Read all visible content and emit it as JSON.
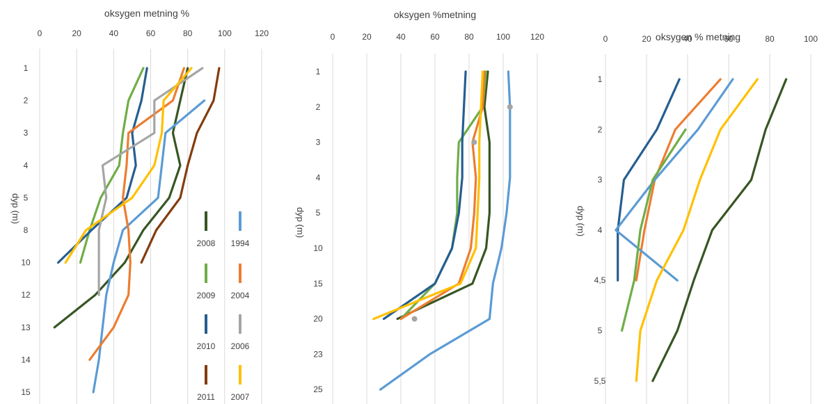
{
  "chart_data": [
    {
      "type": "line",
      "title": "oksygen metning %",
      "xlabel": "oksygen metning %",
      "ylabel": "dyp (m)",
      "xlim": [
        0,
        120
      ],
      "x_ticks": [
        "0",
        "20",
        "40",
        "60",
        "80",
        "100",
        "120"
      ],
      "depth_categories": [
        "1",
        "2",
        "3",
        "4",
        "5",
        "8",
        "10",
        "12",
        "13",
        "14",
        "15"
      ],
      "legend_position": "right",
      "grid": true,
      "series": [
        {
          "name": "2008",
          "color": "#375623",
          "values": [
            80,
            76,
            72,
            76,
            70,
            56,
            46,
            30,
            8,
            null,
            null
          ]
        },
        {
          "name": "2009",
          "color": "#70ad47",
          "values": [
            56,
            48,
            45,
            43,
            33,
            27,
            22,
            null,
            null,
            null,
            null
          ]
        },
        {
          "name": "2010",
          "color": "#255e91",
          "values": [
            58,
            55,
            50,
            52,
            47,
            28,
            10,
            null,
            null,
            null,
            null
          ]
        },
        {
          "name": "2011",
          "color": "#843c0c",
          "values": [
            97,
            94,
            85,
            80,
            76,
            63,
            55,
            null,
            null,
            null,
            null
          ]
        },
        {
          "name": "1994",
          "color": "#5b9bd5",
          "values": [
            null,
            89,
            68,
            66,
            64,
            45,
            40,
            36,
            34,
            32,
            29
          ]
        },
        {
          "name": "2004",
          "color": "#ed7d31",
          "values": [
            78,
            72,
            48,
            47,
            45,
            48,
            49,
            48,
            40,
            27,
            null
          ]
        },
        {
          "name": "2006",
          "color": "#a5a5a5",
          "values": [
            88,
            62,
            62,
            34,
            36,
            32,
            32,
            32,
            null,
            null,
            null
          ]
        },
        {
          "name": "2007",
          "color": "#ffc000",
          "values": [
            82,
            67,
            66,
            62,
            50,
            25,
            14,
            null,
            null,
            null,
            null
          ]
        }
      ]
    },
    {
      "type": "line",
      "title": "oksygen %metning",
      "xlabel": "oksygen %metning",
      "ylabel": "dyp (m)",
      "xlim": [
        0,
        120
      ],
      "x_ticks": [
        "0",
        "20",
        "40",
        "60",
        "80",
        "100",
        "120"
      ],
      "depth_categories": [
        "1",
        "2",
        "3",
        "4",
        "5",
        "10",
        "15",
        "20",
        "23",
        "25"
      ],
      "grid": true,
      "series": [
        {
          "color": "#375623",
          "values": [
            91,
            89,
            92,
            92,
            92,
            90,
            82,
            38,
            null,
            null
          ]
        },
        {
          "color": "#70ad47",
          "values": [
            90,
            88,
            74,
            73,
            73,
            70,
            60,
            40,
            null,
            null
          ]
        },
        {
          "color": "#255e91",
          "values": [
            78,
            77,
            76,
            76,
            74,
            70,
            60,
            30,
            null,
            null
          ]
        },
        {
          "color": "#ed7d31",
          "values": [
            89,
            88,
            82,
            84,
            83,
            81,
            74,
            40,
            null,
            null
          ]
        },
        {
          "color": "#ffc000",
          "values": [
            88,
            87,
            86,
            86,
            85,
            84,
            75,
            24,
            null,
            null
          ]
        },
        {
          "color": "#5b9bd5",
          "values": [
            103,
            104,
            104,
            104,
            102,
            99,
            94,
            92,
            57,
            28
          ]
        },
        {
          "color": "#a5a5a5",
          "values": [
            null,
            104,
            83,
            null,
            null,
            null,
            null,
            48,
            null,
            null
          ]
        }
      ]
    },
    {
      "type": "line",
      "title": "oksygen % metning",
      "xlabel": "oksygen % metning",
      "ylabel": "dyp (m)",
      "xlim": [
        0,
        100
      ],
      "x_ticks": [
        "0",
        "20",
        "40",
        "60",
        "80",
        "100"
      ],
      "depth_categories": [
        "1",
        "2",
        "3",
        "4",
        "4,5",
        "5",
        "5,5"
      ],
      "grid": true,
      "series": [
        {
          "color": "#375623",
          "values": [
            88,
            78,
            71,
            52,
            43,
            35,
            23
          ]
        },
        {
          "color": "#255e91",
          "values": [
            36,
            25,
            9,
            6,
            6,
            null,
            null
          ]
        },
        {
          "color": "#ed7d31",
          "values": [
            56,
            34,
            24,
            19,
            15,
            null,
            null
          ]
        },
        {
          "color": "#5b9bd5",
          "values": [
            62,
            45,
            24,
            5,
            35,
            null,
            null
          ]
        },
        {
          "color": "#70ad47",
          "values": [
            null,
            39,
            23,
            17,
            14,
            8,
            null
          ]
        },
        {
          "color": "#ffc000",
          "values": [
            74,
            56,
            46,
            38,
            25,
            17,
            15
          ]
        }
      ]
    }
  ]
}
